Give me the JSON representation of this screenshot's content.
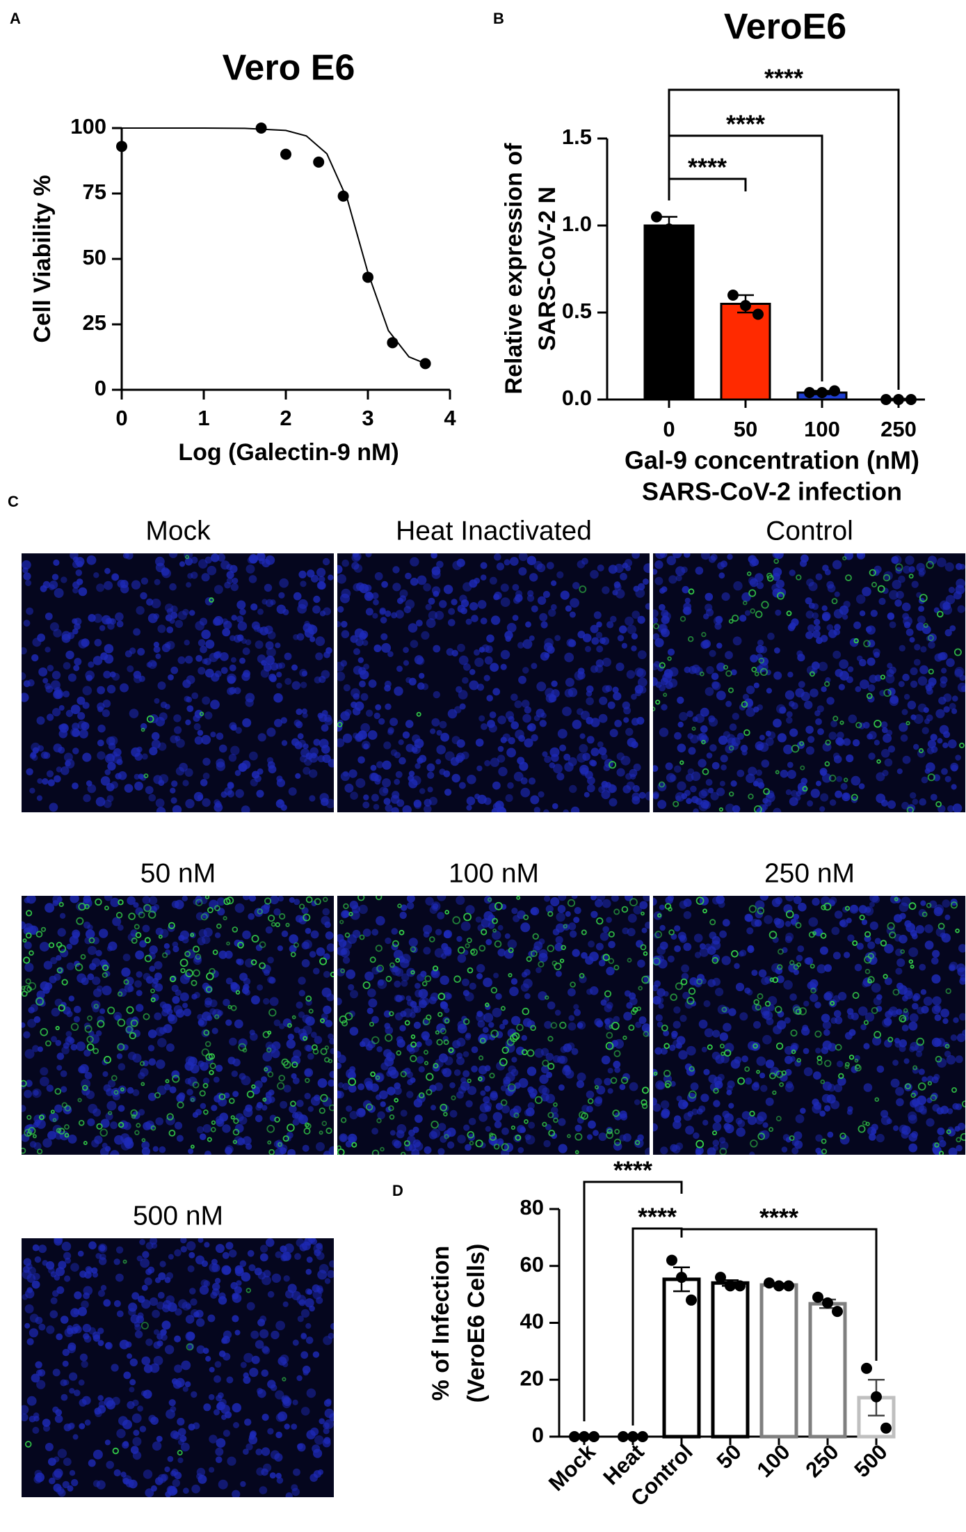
{
  "chart_data": [
    {
      "type": "scatter",
      "panel": "A",
      "title": "Vero E6",
      "xlabel": "Log (Galectin-9 nM)",
      "ylabel": [
        "Cell Viability %"
      ],
      "x": [
        0,
        1.7,
        2,
        2.4,
        2.7,
        3,
        3.3,
        3.7
      ],
      "values": [
        93,
        100,
        90,
        87,
        74,
        43,
        18,
        10
      ],
      "color": "#000000",
      "curve": {
        "x": [
          0,
          0.5,
          1,
          1.5,
          2,
          2.25,
          2.5,
          2.75,
          3,
          3.25,
          3.5,
          3.75
        ],
        "values": [
          100,
          100,
          100,
          99.9,
          99.1,
          97,
          90.2,
          72.7,
          44.8,
          22.6,
          12.6,
          9.4
        ]
      },
      "xlim": [
        0,
        4
      ],
      "ylim": [
        0,
        100
      ],
      "xticks": [
        0,
        1,
        2,
        3,
        4
      ],
      "yticks": [
        0,
        25,
        50,
        75,
        100
      ]
    },
    {
      "type": "bar",
      "panel": "B",
      "title": "VeroE6",
      "xlabel": [
        "Gal-9 concentration (nM)",
        "SARS-CoV-2 infection"
      ],
      "ylabel": [
        "Relative expression of",
        "SARS-CoV-2 N"
      ],
      "categories": [
        "0",
        "50",
        "100",
        "250"
      ],
      "values": [
        1.0,
        0.55,
        0.04,
        0.0
      ],
      "errors": [
        0.05,
        0.05,
        0.01,
        0.005
      ],
      "points": [
        [
          1.05,
          0.98,
          0.97
        ],
        [
          0.6,
          0.54,
          0.49
        ],
        [
          0.04,
          0.04,
          0.05
        ],
        [
          0,
          0,
          0
        ]
      ],
      "fill_colors": [
        "#000000",
        "#ff2a00",
        "#1f3fd0",
        "#1f3fd0"
      ],
      "edge_colors": [
        "#000000",
        "#000000",
        "#000000",
        "#000000"
      ],
      "ylim": [
        0,
        1.5
      ],
      "yticks": [
        {
          "value": 0,
          "label": "0.0"
        },
        {
          "value": 0.5,
          "label": "0.5"
        },
        {
          "value": 1,
          "label": "1.0"
        },
        {
          "value": 1.5,
          "label": "1.5"
        }
      ],
      "significance": [
        {
          "between": [
            "0",
            "50"
          ],
          "label": "****"
        },
        {
          "between": [
            "0",
            "100"
          ],
          "label": "****"
        },
        {
          "between": [
            "0",
            "250"
          ],
          "label": "****"
        }
      ]
    },
    {
      "type": "bar",
      "panel": "D",
      "ylabel": [
        "% of Infection",
        "(VeroE6 Cells)"
      ],
      "categories": [
        "Mock",
        "Heat",
        "Control",
        "50",
        "100",
        "250",
        "500"
      ],
      "values": [
        0,
        0,
        55.3,
        54,
        53.3,
        46.7,
        13.7
      ],
      "errors": [
        0,
        0,
        4.2,
        1,
        0.5,
        1.5,
        6.3
      ],
      "points": [
        [
          0,
          0,
          0
        ],
        [
          0,
          0,
          0
        ],
        [
          62,
          56,
          48
        ],
        [
          56,
          53,
          53
        ],
        [
          54,
          53,
          53
        ],
        [
          49,
          47,
          44
        ],
        [
          24,
          14,
          3
        ]
      ],
      "fill_colors": [
        "#ffffff",
        "#ffffff",
        "#ffffff",
        "#ffffff",
        "#ffffff",
        "#ffffff",
        "#ffffff"
      ],
      "edge_colors": [
        "#000000",
        "#000000",
        "#000000",
        "#000000",
        "#7f7f7f",
        "#7f7f7f",
        "#bfbfbf"
      ],
      "ylim": [
        0,
        80
      ],
      "yticks": [
        0,
        20,
        40,
        60,
        80
      ],
      "significance": [
        {
          "between": [
            "Mock",
            "Control"
          ],
          "label": "****"
        },
        {
          "between": [
            "Heat",
            "Control"
          ],
          "label": "****"
        },
        {
          "between": [
            "Control",
            "500"
          ],
          "label": "****"
        }
      ]
    }
  ],
  "figure_c": {
    "panel": "C",
    "images": [
      "Mock",
      "Heat Inactivated",
      "Control",
      "50 nM",
      "100 nM",
      "250 nM",
      "500 nM"
    ]
  }
}
